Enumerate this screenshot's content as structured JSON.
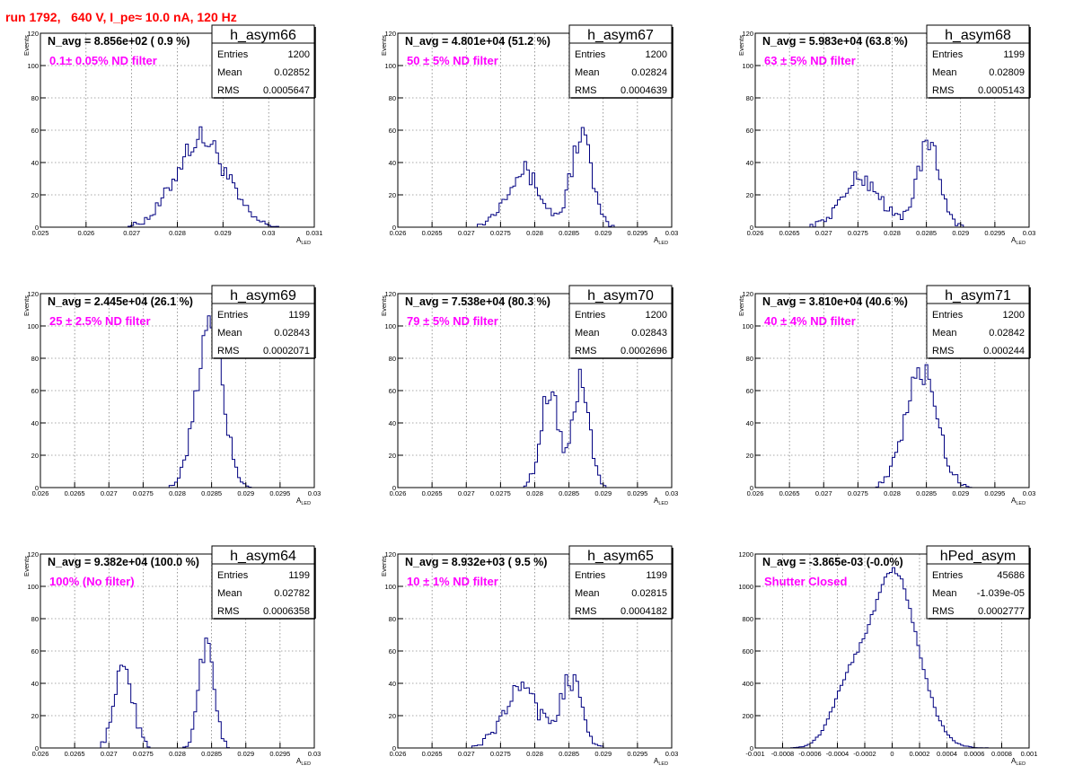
{
  "run_title": "run 1792,   640 V, I_pe≈ 10.0 nA, 120 Hz",
  "colors": {
    "histogram": "#000080",
    "annotation": "#ff00ff",
    "title": "#ff0000"
  },
  "chart_data": [
    {
      "type": "histogram",
      "name": "h_asym66",
      "navg_text": "N_avg = 8.856e+02 ( 0.9 %)",
      "filter_text": "0.1± 0.05% ND filter",
      "stats": {
        "Entries": "1200",
        "Mean": "0.02852",
        "RMS": "0.0005647"
      },
      "xlabel": "A_LED",
      "ylabel": "Events",
      "xlim": [
        0.025,
        0.031
      ],
      "ylim": [
        0,
        120
      ],
      "xticks": [
        "0.025",
        "0.026",
        "0.027",
        "0.028",
        "0.029",
        "0.03",
        "0.031"
      ],
      "yticks": [
        "0",
        "20",
        "40",
        "60",
        "80",
        "100",
        "120"
      ],
      "peaks": [
        {
          "mu": 0.02852,
          "sigma": 0.00055,
          "amp": 55
        }
      ]
    },
    {
      "type": "histogram",
      "name": "h_asym67",
      "navg_text": "N_avg = 4.801e+04 (51.2 %)",
      "filter_text": "50 ± 5% ND filter",
      "stats": {
        "Entries": "1200",
        "Mean": "0.02824",
        "RMS": "0.0004639"
      },
      "xlabel": "A_LED",
      "ylabel": "Events",
      "xlim": [
        0.026,
        0.03
      ],
      "ylim": [
        0,
        120
      ],
      "xticks": [
        "0.026",
        "0.0265",
        "0.027",
        "0.0275",
        "0.028",
        "0.0285",
        "0.029",
        "0.0295",
        "0.03"
      ],
      "yticks": [
        "0",
        "20",
        "40",
        "60",
        "80",
        "100",
        "120"
      ],
      "peaks": [
        {
          "mu": 0.02782,
          "sigma": 0.00025,
          "amp": 35
        },
        {
          "mu": 0.02868,
          "sigma": 0.00015,
          "amp": 57
        }
      ]
    },
    {
      "type": "histogram",
      "name": "h_asym68",
      "navg_text": "N_avg = 5.983e+04 (63.8 %)",
      "filter_text": "63 ± 5% ND filter",
      "stats": {
        "Entries": "1199",
        "Mean": "0.02809",
        "RMS": "0.0005143"
      },
      "xlabel": "A_LED",
      "ylabel": "Events",
      "xlim": [
        0.026,
        0.03
      ],
      "ylim": [
        0,
        120
      ],
      "xticks": [
        "0.026",
        "0.0265",
        "0.027",
        "0.0275",
        "0.028",
        "0.0285",
        "0.029",
        "0.0295",
        "0.03"
      ],
      "yticks": [
        "0",
        "20",
        "40",
        "60",
        "80",
        "100",
        "120"
      ],
      "peaks": [
        {
          "mu": 0.02755,
          "sigma": 0.00028,
          "amp": 30
        },
        {
          "mu": 0.02853,
          "sigma": 0.00017,
          "amp": 50
        }
      ]
    },
    {
      "type": "histogram",
      "name": "h_asym69",
      "navg_text": "N_avg = 2.445e+04 (26.1 %)",
      "filter_text": "25 ± 2.5% ND filter",
      "stats": {
        "Entries": "1199",
        "Mean": "0.02843",
        "RMS": "0.0002071"
      },
      "xlabel": "A_LED",
      "ylabel": "Events",
      "xlim": [
        0.026,
        0.03
      ],
      "ylim": [
        0,
        120
      ],
      "xticks": [
        "0.026",
        "0.0265",
        "0.027",
        "0.0275",
        "0.028",
        "0.0285",
        "0.029",
        "0.0295",
        "0.03"
      ],
      "yticks": [
        "0",
        "20",
        "40",
        "60",
        "80",
        "100",
        "120"
      ],
      "peaks": [
        {
          "mu": 0.02847,
          "sigma": 0.00019,
          "amp": 100
        }
      ]
    },
    {
      "type": "histogram",
      "name": "h_asym70",
      "navg_text": "N_avg = 7.538e+04 (80.3 %)",
      "filter_text": "79 ± 5% ND filter",
      "stats": {
        "Entries": "1200",
        "Mean": "0.02843",
        "RMS": "0.0002696"
      },
      "xlabel": "A_LED",
      "ylabel": "Events",
      "xlim": [
        0.026,
        0.03
      ],
      "ylim": [
        0,
        120
      ],
      "xticks": [
        "0.026",
        "0.0265",
        "0.027",
        "0.0275",
        "0.028",
        "0.0285",
        "0.029",
        "0.0295",
        "0.03"
      ],
      "yticks": [
        "0",
        "20",
        "40",
        "60",
        "80",
        "100",
        "120"
      ],
      "peaks": [
        {
          "mu": 0.02822,
          "sigma": 0.00013,
          "amp": 62
        },
        {
          "mu": 0.02868,
          "sigma": 0.00012,
          "amp": 66
        }
      ]
    },
    {
      "type": "histogram",
      "name": "h_asym71",
      "navg_text": "N_avg = 3.810e+04 (40.6 %)",
      "filter_text": "40 ± 4% ND filter",
      "stats": {
        "Entries": "1200",
        "Mean": "0.02842",
        "RMS": "0.000244"
      },
      "xlabel": "A_LED",
      "ylabel": "Events",
      "xlim": [
        0.026,
        0.03
      ],
      "ylim": [
        0,
        120
      ],
      "xticks": [
        "0.026",
        "0.0265",
        "0.027",
        "0.0275",
        "0.028",
        "0.0285",
        "0.029",
        "0.0295",
        "0.03"
      ],
      "yticks": [
        "0",
        "20",
        "40",
        "60",
        "80",
        "100",
        "120"
      ],
      "peaks": [
        {
          "mu": 0.02843,
          "sigma": 0.00023,
          "amp": 72
        }
      ]
    },
    {
      "type": "histogram",
      "name": "h_asym64",
      "navg_text": "N_avg = 9.382e+04 (100.0 %)",
      "filter_text": "100% (No filter)",
      "stats": {
        "Entries": "1199",
        "Mean": "0.02782",
        "RMS": "0.0006358"
      },
      "xlabel": "A_LED",
      "ylabel": "Events",
      "xlim": [
        0.026,
        0.03
      ],
      "ylim": [
        0,
        120
      ],
      "xticks": [
        "0.026",
        "0.0265",
        "0.027",
        "0.0275",
        "0.028",
        "0.0285",
        "0.029",
        "0.0295",
        "0.03"
      ],
      "yticks": [
        "0",
        "20",
        "40",
        "60",
        "80",
        "100",
        "120"
      ],
      "peaks": [
        {
          "mu": 0.02722,
          "sigma": 0.00013,
          "amp": 52
        },
        {
          "mu": 0.02843,
          "sigma": 0.00011,
          "amp": 68
        }
      ]
    },
    {
      "type": "histogram",
      "name": "h_asym65",
      "navg_text": "N_avg = 8.932e+03 ( 9.5 %)",
      "filter_text": "10 ± 1% ND filter",
      "stats": {
        "Entries": "1199",
        "Mean": "0.02815",
        "RMS": "0.0004182"
      },
      "xlabel": "A_LED",
      "ylabel": "Events",
      "xlim": [
        0.026,
        0.03
      ],
      "ylim": [
        0,
        120
      ],
      "xticks": [
        "0.026",
        "0.0265",
        "0.027",
        "0.0275",
        "0.028",
        "0.0285",
        "0.029",
        "0.0295",
        "0.03"
      ],
      "yticks": [
        "0",
        "20",
        "40",
        "60",
        "80",
        "100",
        "120"
      ],
      "peaks": [
        {
          "mu": 0.0278,
          "sigma": 0.00026,
          "amp": 36
        },
        {
          "mu": 0.02853,
          "sigma": 0.00016,
          "amp": 42
        }
      ]
    },
    {
      "type": "histogram",
      "name": "hPed_asym",
      "navg_text": "N_avg = -3.865e-03 (-0.0%)",
      "filter_text": "Shutter Closed",
      "stats": {
        "Entries": "45686",
        "Mean": "-1.039e-05",
        "RMS": "0.0002777"
      },
      "xlabel": "A_LED",
      "ylabel": "",
      "xlim": [
        -0.001,
        0.001
      ],
      "ylim": [
        0,
        1300
      ],
      "xticks": [
        "-0.001",
        "-0.0008",
        "-0.0006",
        "-0.0004",
        "-0.0002",
        "0",
        "0.0002",
        "0.0004",
        "0.0006",
        "0.0008",
        "0.001"
      ],
      "yticks": [
        "0",
        "200",
        "400",
        "600",
        "800",
        "1000",
        "1200"
      ],
      "peaks": [
        {
          "mu": 1e-05,
          "sigma": 0.000175,
          "amp": 1180
        },
        {
          "mu": -0.00033,
          "sigma": 0.00012,
          "amp": 330
        }
      ]
    }
  ]
}
